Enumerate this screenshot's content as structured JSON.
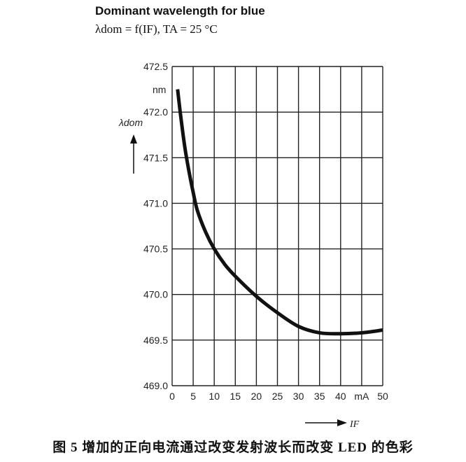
{
  "chart_data": {
    "type": "line",
    "title": "Dominant wavelength for blue",
    "subtitle": "λdom = f(IF), TA = 25 °C",
    "xlabel": "IF",
    "ylabel": "λdom",
    "x_unit": "mA",
    "y_unit": "nm",
    "xlim": [
      0,
      50
    ],
    "ylim": [
      469.0,
      472.5
    ],
    "grid": true,
    "x_ticks": [
      "0",
      "5",
      "10",
      "15",
      "20",
      "25",
      "30",
      "35",
      "40",
      "mA",
      "50"
    ],
    "y_ticks": [
      "469.0",
      "469.5",
      "470.0",
      "470.5",
      "471.0",
      "471.5",
      "472.0",
      "472.5"
    ],
    "series": [
      {
        "x": [
          1.3,
          2,
          3,
          4,
          5,
          6,
          8,
          10,
          12.5,
          15,
          20,
          25,
          30,
          35,
          40,
          45,
          50
        ],
        "y": [
          472.25,
          471.97,
          471.62,
          471.35,
          471.12,
          470.92,
          470.68,
          470.5,
          470.33,
          470.2,
          469.98,
          469.8,
          469.65,
          469.58,
          469.57,
          469.58,
          469.61
        ]
      }
    ],
    "line_color": "#111111"
  },
  "caption": "图 5  增加的正向电流通过改变发射波长而改变 LED 的色彩"
}
